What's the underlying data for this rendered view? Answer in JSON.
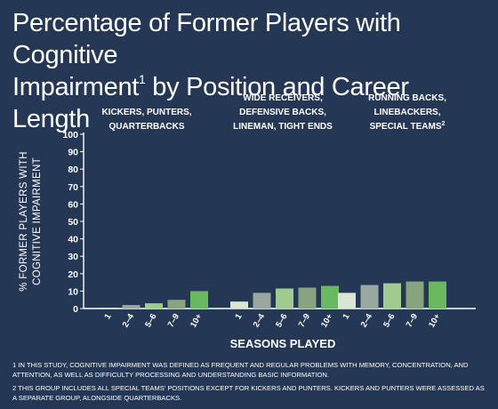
{
  "title": {
    "line1": "Percentage of Former Players with Cognitive",
    "line2_main": "Impairment",
    "line2_sup": "1",
    "line2_rest": " by Position and Career Length"
  },
  "colors": {
    "background": "#243754",
    "text": "#ffffff",
    "bar_shades": [
      "#d8e6d2",
      "#9aa8a0",
      "#9fcc8e",
      "#87a47f",
      "#6ab860"
    ]
  },
  "chart_data": {
    "type": "bar",
    "xlabel": "SEASONS PLAYED",
    "ylabel_lines": [
      "% FORMER PLAYERS WITH",
      "COGNITIVE IMPAIRMENT"
    ],
    "ylim": [
      0,
      100
    ],
    "y_ticks": [
      "0",
      "10",
      "20",
      "30",
      "40",
      "50",
      "60",
      "70",
      "80",
      "90",
      "100"
    ],
    "categories": [
      "1",
      "2–4",
      "5–6",
      "7–9",
      "10+"
    ],
    "groups": [
      {
        "label_lines": [
          "KICKERS, PUNTERS,",
          "QUARTERBACKS"
        ],
        "label_sup": "",
        "values": [
          0.5,
          2,
          3,
          5,
          10
        ]
      },
      {
        "label_lines": [
          "WIDE RECEIVERS,",
          "DEFENSIVE BACKS,",
          "LINEMAN, TIGHT ENDS"
        ],
        "label_sup": "",
        "values": [
          4,
          9,
          11.5,
          12,
          13
        ]
      },
      {
        "label_lines": [
          "RUNNING BACKS,",
          "LINEBACKERS,",
          "SPECIAL TEAMS"
        ],
        "label_sup": "2",
        "values": [
          9,
          13.5,
          14.5,
          15.5,
          15.5
        ]
      }
    ],
    "grid": false,
    "legend": "none"
  },
  "footnotes": [
    "1 In this study, cognitive impairment was defined as frequent and regular problems with memory, concentration, and attention, as well as difficulty processing and understanding basic information.",
    "2 This group includes all special teams' positions except for kickers and punters. Kickers and punters were assessed as a separate group, alongside quarterbacks."
  ]
}
